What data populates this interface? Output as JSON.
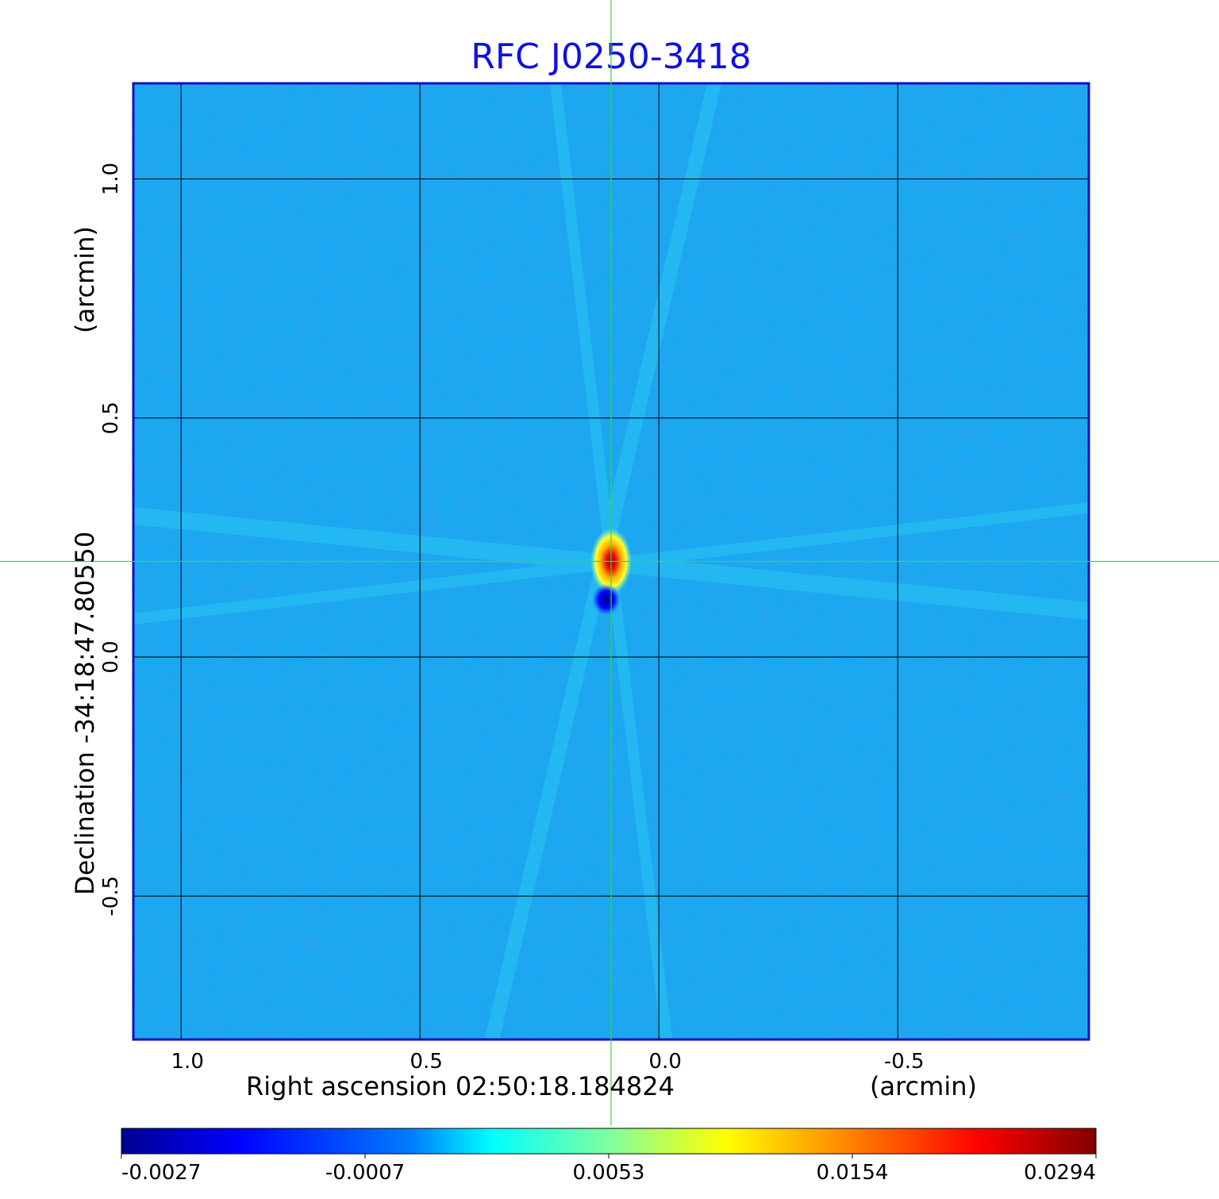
{
  "chart_data": {
    "type": "heatmap",
    "title": "RFC J0250-3418",
    "xlabel": "Right ascension  02:50:18.184824",
    "xunit": "(arcmin)",
    "ylabel": "Declination  -34:18:47.80550",
    "yunit": "(arcmin)",
    "xlim": [
      1.1,
      -0.9
    ],
    "ylim": [
      -0.8,
      1.2
    ],
    "x_ticks": [
      "1.0",
      "0.5",
      "0.0",
      "-0.5"
    ],
    "x_tick_values": [
      1.0,
      0.5,
      0.0,
      -0.5
    ],
    "y_ticks": [
      "-0.5",
      "0.0",
      "0.5",
      "1.0"
    ],
    "y_tick_values": [
      -0.5,
      0.0,
      0.5,
      1.0
    ],
    "grid": true,
    "colormap": "jet",
    "colorbar_ticks": [
      "-0.0027",
      "-0.0007",
      "0.0053",
      "0.0154",
      "0.0294"
    ],
    "background_level": -0.0007,
    "sources": [
      {
        "x": 0.1,
        "y": 0.2,
        "peak": 0.0294
      },
      {
        "x": 0.1,
        "y": 0.12,
        "peak": -0.0027
      }
    ],
    "crosshair": {
      "x": 0.1,
      "y": 0.2,
      "color": "#33dd33"
    },
    "colors": {
      "title": "#1010e0",
      "frame": "#1010c0",
      "background_field": "#1fa6ef"
    }
  }
}
